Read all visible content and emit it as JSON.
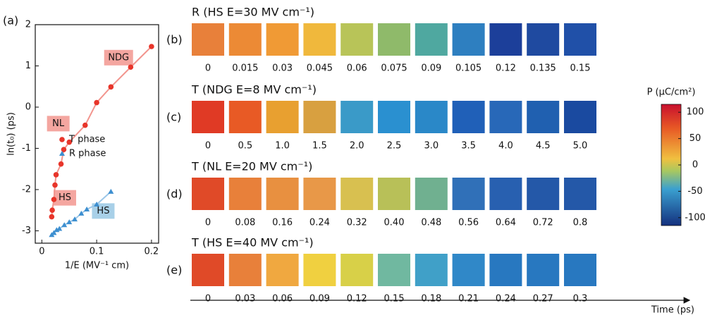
{
  "chart_data": {
    "type": "scatter",
    "panel_label": "(a)",
    "xlabel": "1/E (MV⁻¹ cm)",
    "ylabel": "ln(t₀) (ps)",
    "xlim": [
      -0.012,
      0.213
    ],
    "ylim": [
      -3.3,
      2
    ],
    "xticks": [
      0,
      0.1,
      0.2
    ],
    "yticks": [
      -3,
      -2,
      -1,
      0,
      1,
      2
    ],
    "legend": "center right",
    "series": [
      {
        "name": "T phase",
        "color": "#e8352a",
        "line_color": "#f2958e",
        "marker": "circle",
        "x": [
          0.018,
          0.019,
          0.022,
          0.024,
          0.026,
          0.035,
          0.04,
          0.05,
          0.079,
          0.1,
          0.126,
          0.162,
          0.2
        ],
        "values": [
          -2.66,
          -2.5,
          -2.24,
          -1.89,
          -1.64,
          -1.38,
          -1.03,
          -0.85,
          -0.44,
          0.11,
          0.49,
          0.97,
          1.47
        ]
      },
      {
        "name": "R phase",
        "color": "#3d8fd0",
        "line_color": "#9cc7e8",
        "marker": "triangle",
        "x": [
          0.018,
          0.022,
          0.027,
          0.032,
          0.041,
          0.05,
          0.06,
          0.072,
          0.082,
          0.1,
          0.126
        ],
        "values": [
          -3.1,
          -3.05,
          -2.98,
          -2.95,
          -2.86,
          -2.79,
          -2.72,
          -2.58,
          -2.48,
          -2.36,
          -2.05
        ]
      }
    ],
    "annotations": [
      {
        "text": "NDG",
        "x": 0.14,
        "y": 1.2,
        "color": "#f4a6a0"
      },
      {
        "text": "NL",
        "x": 0.03,
        "y": -0.4,
        "color": "#f4a6a0"
      },
      {
        "text": "HS",
        "x": 0.042,
        "y": -2.2,
        "color": "#f4a6a0"
      },
      {
        "text": "HS",
        "x": 0.112,
        "y": -2.52,
        "color": "#a8d0e8"
      }
    ]
  },
  "panels": [
    {
      "label": "(b)",
      "title": "R (HS E=30 MV cm⁻¹)",
      "times": [
        "0",
        "0.015",
        "0.03",
        "0.045",
        "0.06",
        "0.075",
        "0.09",
        "0.105",
        "0.12",
        "0.135",
        "0.15"
      ],
      "colors": [
        "#e8803a",
        "#ec8a35",
        "#f09a35",
        "#f0b83c",
        "#b8c458",
        "#8fba6a",
        "#4fa8a0",
        "#2e7fc0",
        "#1c3f9a",
        "#1f4aa0",
        "#2050a8"
      ]
    },
    {
      "label": "(c)",
      "title": "T (NDG E=8 MV cm⁻¹)",
      "times": [
        "0",
        "0.5",
        "1.0",
        "1.5",
        "2.0",
        "2.5",
        "3.0",
        "3.5",
        "4.0",
        "4.5",
        "5.0"
      ],
      "colors": [
        "#e03a25",
        "#e85a25",
        "#e8a030",
        "#d8a040",
        "#3a9ac8",
        "#2a90d0",
        "#2a88c8",
        "#2060b8",
        "#2868b8",
        "#2060b0",
        "#1a4aa0"
      ]
    },
    {
      "label": "(d)",
      "title": "T (NL E=20 MV cm⁻¹)",
      "times": [
        "0",
        "0.08",
        "0.16",
        "0.24",
        "0.32",
        "0.40",
        "0.48",
        "0.56",
        "0.64",
        "0.72",
        "0.8"
      ],
      "colors": [
        "#e04a28",
        "#e8803a",
        "#e89040",
        "#e89848",
        "#d8c050",
        "#b8c058",
        "#70b090",
        "#3070b8",
        "#2860b0",
        "#2458a8",
        "#2458a8"
      ]
    },
    {
      "label": "(e)",
      "title": "T (HS E=40 MV cm⁻¹)",
      "times": [
        "0",
        "0.03",
        "0.06",
        "0.09",
        "0.12",
        "0.15",
        "0.18",
        "0.21",
        "0.24",
        "0.27",
        "0.3"
      ],
      "colors": [
        "#e04a28",
        "#e8803a",
        "#f0a840",
        "#f0d040",
        "#d8d048",
        "#70b8a0",
        "#40a0c8",
        "#3088c8",
        "#2878c0",
        "#2878c0",
        "#2878c0"
      ]
    }
  ],
  "colorbar": {
    "label": "P (μC/cm²)",
    "ylim": [
      -115,
      115
    ],
    "yticks": [
      100,
      50,
      0,
      -50,
      -100
    ]
  },
  "time_axis": "Time (ps)"
}
